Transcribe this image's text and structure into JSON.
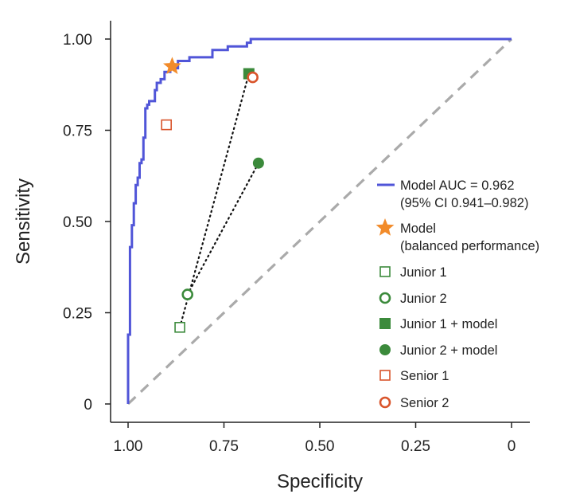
{
  "chart_data": {
    "type": "line",
    "xlabel": "Specificity",
    "ylabel": "Sensitivity",
    "xlim": [
      1.0,
      0.0
    ],
    "ylim": [
      0.0,
      1.0
    ],
    "x_ticks": [
      {
        "value": 1.0,
        "label": "1.00"
      },
      {
        "value": 0.75,
        "label": "0.75"
      },
      {
        "value": 0.5,
        "label": "0.50"
      },
      {
        "value": 0.25,
        "label": "0.25"
      },
      {
        "value": 0.0,
        "label": "0"
      }
    ],
    "y_ticks": [
      {
        "value": 0.0,
        "label": "0"
      },
      {
        "value": 0.25,
        "label": "0.25"
      },
      {
        "value": 0.5,
        "label": "0.50"
      },
      {
        "value": 0.75,
        "label": "0.75"
      },
      {
        "value": 1.0,
        "label": "1.00"
      }
    ],
    "roc_curve": {
      "name": "Model AUC = 0.962",
      "ci": "(95% CI 0.941–0.982)",
      "color": "#5055d8",
      "points": [
        [
          1.0,
          0.0
        ],
        [
          1.0,
          0.19
        ],
        [
          0.995,
          0.19
        ],
        [
          0.995,
          0.43
        ],
        [
          0.99,
          0.43
        ],
        [
          0.99,
          0.49
        ],
        [
          0.985,
          0.49
        ],
        [
          0.985,
          0.55
        ],
        [
          0.98,
          0.55
        ],
        [
          0.98,
          0.6
        ],
        [
          0.975,
          0.6
        ],
        [
          0.975,
          0.62
        ],
        [
          0.97,
          0.62
        ],
        [
          0.97,
          0.66
        ],
        [
          0.965,
          0.66
        ],
        [
          0.965,
          0.67
        ],
        [
          0.96,
          0.67
        ],
        [
          0.96,
          0.73
        ],
        [
          0.955,
          0.73
        ],
        [
          0.955,
          0.81
        ],
        [
          0.95,
          0.81
        ],
        [
          0.95,
          0.82
        ],
        [
          0.945,
          0.82
        ],
        [
          0.945,
          0.83
        ],
        [
          0.93,
          0.83
        ],
        [
          0.93,
          0.86
        ],
        [
          0.925,
          0.86
        ],
        [
          0.925,
          0.88
        ],
        [
          0.915,
          0.88
        ],
        [
          0.915,
          0.89
        ],
        [
          0.905,
          0.89
        ],
        [
          0.905,
          0.91
        ],
        [
          0.89,
          0.91
        ],
        [
          0.89,
          0.92
        ],
        [
          0.87,
          0.92
        ],
        [
          0.87,
          0.94
        ],
        [
          0.84,
          0.94
        ],
        [
          0.84,
          0.95
        ],
        [
          0.78,
          0.95
        ],
        [
          0.78,
          0.97
        ],
        [
          0.74,
          0.97
        ],
        [
          0.74,
          0.98
        ],
        [
          0.69,
          0.98
        ],
        [
          0.69,
          0.99
        ],
        [
          0.68,
          0.99
        ],
        [
          0.68,
          1.0
        ],
        [
          0.0,
          1.0
        ]
      ]
    },
    "diagonal": {
      "points": [
        [
          1.0,
          0.0
        ],
        [
          0.0,
          1.0
        ]
      ],
      "color": "#aaaaaa"
    },
    "markers": [
      {
        "name": "Model",
        "sublabel": "(balanced performance)",
        "shape": "star",
        "x": 0.885,
        "y": 0.925,
        "color": "#f28b2a"
      },
      {
        "name": "Junior 1",
        "shape": "square-open",
        "x": 0.865,
        "y": 0.21,
        "color": "#3b8a3b"
      },
      {
        "name": "Junior 2",
        "shape": "circle-open",
        "x": 0.845,
        "y": 0.3,
        "color": "#3b8a3b"
      },
      {
        "name": "Junior 1 + model",
        "shape": "square-filled",
        "x": 0.685,
        "y": 0.905,
        "color": "#3b8a3b"
      },
      {
        "name": "Junior 2 + model",
        "shape": "circle-filled",
        "x": 0.66,
        "y": 0.66,
        "color": "#3b8a3b"
      },
      {
        "name": "Senior 1",
        "shape": "square-open",
        "x": 0.9,
        "y": 0.765,
        "color": "#d9542b"
      },
      {
        "name": "Senior 2",
        "shape": "circle-open",
        "x": 0.675,
        "y": 0.895,
        "color": "#d9542b"
      }
    ],
    "connectors": [
      {
        "from": [
          0.865,
          0.21
        ],
        "to": [
          0.685,
          0.905
        ]
      },
      {
        "from": [
          0.845,
          0.3
        ],
        "to": [
          0.66,
          0.66
        ]
      }
    ],
    "legend_position": "right"
  }
}
